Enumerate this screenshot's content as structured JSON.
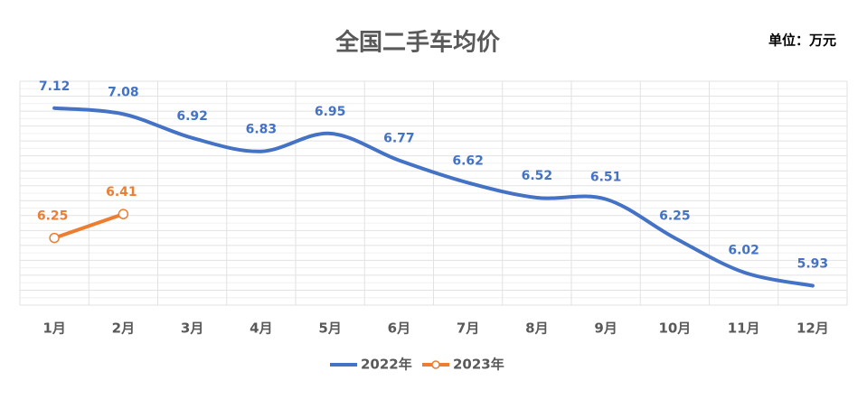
{
  "chart_data": {
    "type": "line",
    "title": "全国二手车均价",
    "annotation": "单位：万元",
    "categories": [
      "1月",
      "2月",
      "3月",
      "4月",
      "5月",
      "6月",
      "7月",
      "8月",
      "9月",
      "10月",
      "11月",
      "12月"
    ],
    "series": [
      {
        "name": "2022年",
        "color": "#4472c4",
        "values": [
          7.12,
          7.08,
          6.92,
          6.83,
          6.95,
          6.77,
          6.62,
          6.52,
          6.51,
          6.25,
          6.02,
          5.93
        ]
      },
      {
        "name": "2023年",
        "color": "#ed7d31",
        "markers": true,
        "values": [
          6.25,
          6.41,
          null,
          null,
          null,
          null,
          null,
          null,
          null,
          null,
          null,
          null
        ]
      }
    ],
    "ylim": [
      5.8,
      7.3
    ],
    "yticks": [
      5.8,
      5.85,
      5.9,
      5.95,
      6.0,
      6.05,
      6.1,
      6.15,
      6.2,
      6.25,
      6.3,
      6.35,
      6.4,
      6.45,
      6.5,
      6.55,
      6.6,
      6.65,
      6.7,
      6.75,
      6.8,
      6.85,
      6.9,
      6.95,
      7.0,
      7.05,
      7.1,
      7.15,
      7.2,
      7.25,
      7.3
    ],
    "grid": true,
    "smooth": true,
    "legend": "bottom"
  }
}
